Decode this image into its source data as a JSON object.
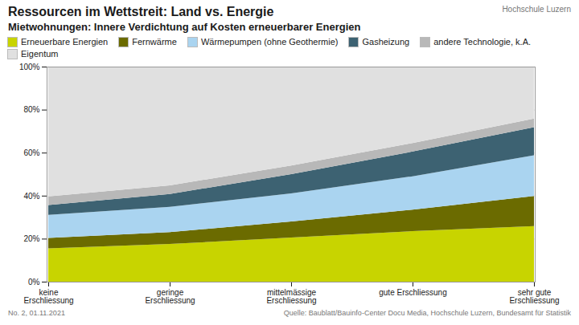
{
  "chart_data": {
    "type": "area",
    "stacked": true,
    "title": "Ressourcen im Wettstreit: Land vs. Energie",
    "subtitle": "Mietwohnungen: Innere Verdichtung auf Kosten erneuerbarer Energien",
    "annotations": [
      "Hochschule Luzern",
      "No. 2, 01.11.2021",
      "Quelle: Baublatt/Bauinfo-Center Docu Media, Hochschule Luzern, Bundesamt für Statistik"
    ],
    "categories": [
      "keine\nErschliessung",
      "geringe\nErschliessung",
      "mittelmässige\nErschliessung",
      "gute Erschliessung",
      "sehr gute\nErschliessung"
    ],
    "series": [
      {
        "name": "Erneuerbare Energien",
        "values": [
          0.155,
          0.175,
          0.205,
          0.235,
          0.258
        ],
        "color": "#c8d400"
      },
      {
        "name": "Fernwärme",
        "values": [
          0.048,
          0.055,
          0.075,
          0.1,
          0.14
        ],
        "color": "#6b6b00"
      },
      {
        "name": "Wärmepumpen (ohne Geothermie)",
        "values": [
          0.108,
          0.118,
          0.13,
          0.155,
          0.19
        ],
        "color": "#aad4f0"
      },
      {
        "name": "Gasheizung",
        "values": [
          0.045,
          0.06,
          0.09,
          0.115,
          0.13
        ],
        "color": "#3d6272"
      },
      {
        "name": "andere Technologie, k.A.",
        "values": [
          0.04,
          0.04,
          0.04,
          0.04,
          0.04
        ],
        "color": "#b8b8b8"
      },
      {
        "name": "Eigentum",
        "values": [
          0.604,
          0.552,
          0.46,
          0.355,
          0.242
        ],
        "color": "#e0e0e0"
      }
    ],
    "ylim": [
      0.0,
      1.0
    ],
    "yticks": [
      {
        "value": 0.0,
        "label": "0%"
      },
      {
        "value": 0.2,
        "label": "20%"
      },
      {
        "value": 0.4,
        "label": "40%"
      },
      {
        "value": 0.6,
        "label": "60%"
      },
      {
        "value": 0.8,
        "label": "80%"
      },
      {
        "value": 1.0,
        "label": "100%"
      }
    ],
    "grid": true,
    "legend": "upper left"
  }
}
